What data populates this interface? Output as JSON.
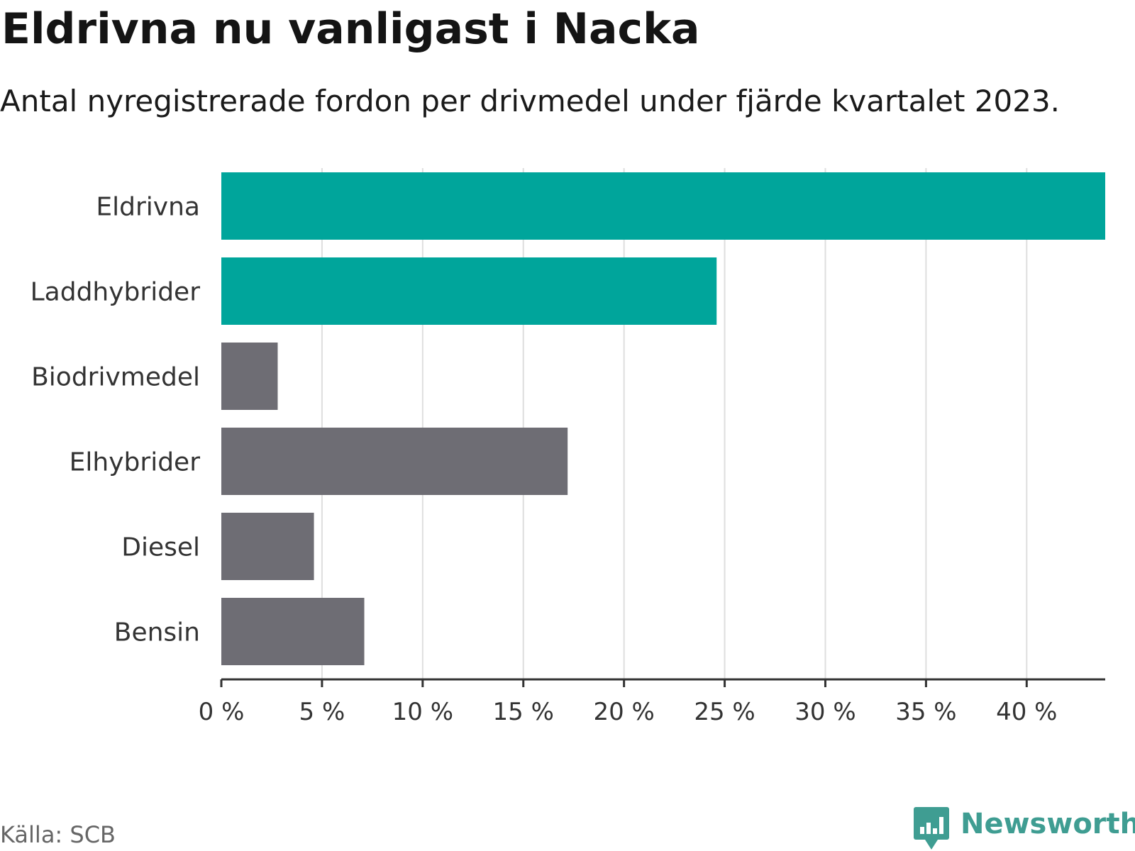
{
  "chart_data": {
    "type": "bar",
    "orientation": "horizontal",
    "title": "Eldrivna nu vanligast i Nacka",
    "subtitle": "Antal nyregistrerade fordon per drivmedel under fjärde kvartalet 2023.",
    "categories": [
      "Eldrivna",
      "Laddhybrider",
      "Biodrivmedel",
      "Elhybrider",
      "Diesel",
      "Bensin"
    ],
    "values": [
      43.9,
      24.6,
      2.8,
      17.2,
      4.6,
      7.1
    ],
    "highlight": [
      true,
      true,
      false,
      false,
      false,
      false
    ],
    "xlim": [
      0,
      43.9
    ],
    "xticks": [
      0,
      5,
      10,
      15,
      20,
      25,
      30,
      35,
      40
    ],
    "xtick_labels": [
      "0 %",
      "5 %",
      "10 %",
      "15 %",
      "20 %",
      "25 %",
      "30 %",
      "35 %",
      "40 %"
    ],
    "xlabel": "",
    "ylabel": "",
    "grid": true,
    "colors": {
      "highlight": "#00a59b",
      "default": "#6e6d74",
      "grid": "#dedede",
      "axis": "#333333",
      "label": "#333333"
    }
  },
  "source": "Källa: SCB",
  "brand": "Newsworthy",
  "brand_color": "#3f9d92"
}
